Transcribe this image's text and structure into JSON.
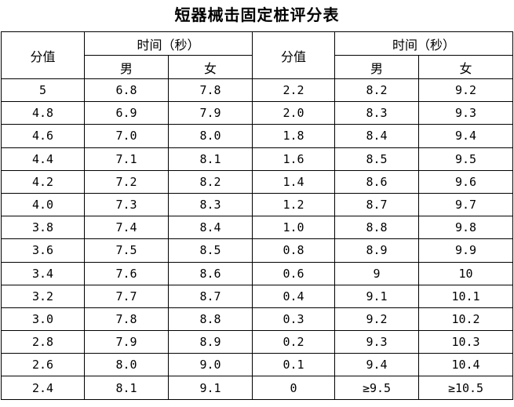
{
  "title": "短器械击固定桩评分表",
  "header": {
    "score_label": "分值",
    "time_label": "时间（秒）",
    "male_label": "男",
    "female_label": "女"
  },
  "rows": [
    [
      "5",
      "6.8",
      "7.8",
      "2.2",
      "8.2",
      "9.2"
    ],
    [
      "4.8",
      "6.9",
      "7.9",
      "2.0",
      "8.3",
      "9.3"
    ],
    [
      "4.6",
      "7.0",
      "8.0",
      "1.8",
      "8.4",
      "9.4"
    ],
    [
      "4.4",
      "7.1",
      "8.1",
      "1.6",
      "8.5",
      "9.5"
    ],
    [
      "4.2",
      "7.2",
      "8.2",
      "1.4",
      "8.6",
      "9.6"
    ],
    [
      "4.0",
      "7.3",
      "8.3",
      "1.2",
      "8.7",
      "9.7"
    ],
    [
      "3.8",
      "7.4",
      "8.4",
      "1.0",
      "8.8",
      "9.8"
    ],
    [
      "3.6",
      "7.5",
      "8.5",
      "0.8",
      "8.9",
      "9.9"
    ],
    [
      "3.4",
      "7.6",
      "8.6",
      "0.6",
      "9",
      "10"
    ],
    [
      "3.2",
      "7.7",
      "8.7",
      "0.4",
      "9.1",
      "10.1"
    ],
    [
      "3.0",
      "7.8",
      "8.8",
      "0.3",
      "9.2",
      "10.2"
    ],
    [
      "2.8",
      "7.9",
      "8.9",
      "0.2",
      "9.3",
      "10.3"
    ],
    [
      "2.6",
      "8.0",
      "9.0",
      "0.1",
      "9.4",
      "10.4"
    ],
    [
      "2.4",
      "8.1",
      "9.1",
      "0",
      "≥9.5",
      "≥10.5"
    ]
  ]
}
